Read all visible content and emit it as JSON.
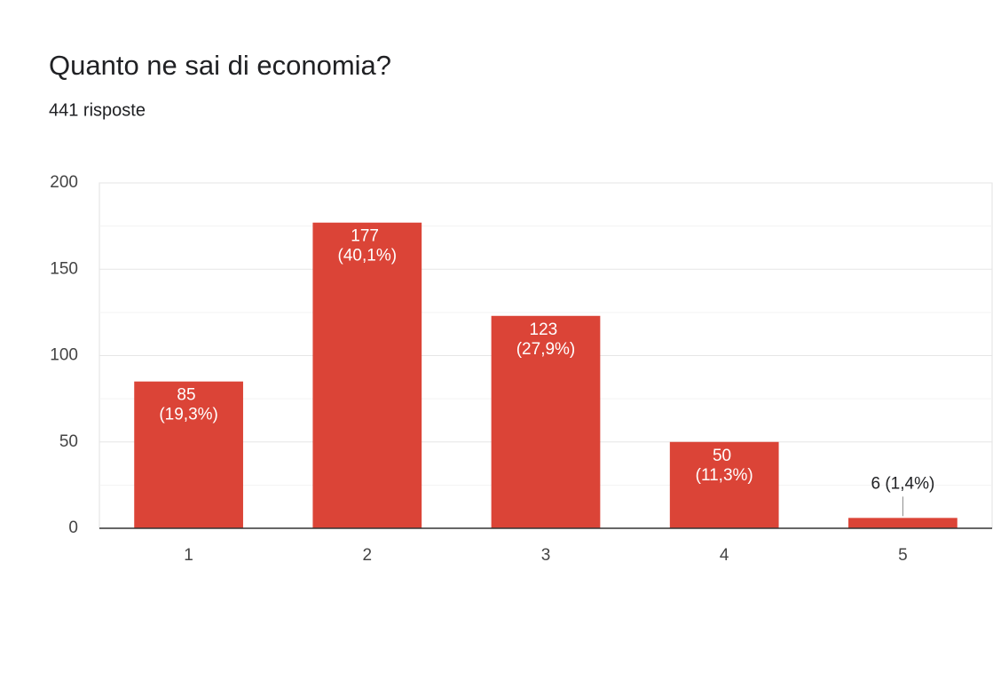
{
  "chart_data": {
    "type": "bar",
    "title": "Quanto ne sai di economia?",
    "subtitle": "441 risposte",
    "categories": [
      "1",
      "2",
      "3",
      "4",
      "5"
    ],
    "values": [
      85,
      177,
      123,
      50,
      6
    ],
    "value_labels": [
      "85 (19,3%)",
      "177 (40,1%)",
      "123 (27,9%)",
      "50 (11,3%)",
      "6 (1,4%)"
    ],
    "color": "#db4437",
    "ylim": [
      0,
      200
    ],
    "yticks": [
      0,
      50,
      100,
      150,
      200
    ],
    "minor_yticks": [
      25,
      75,
      125,
      175
    ],
    "grid": true
  }
}
